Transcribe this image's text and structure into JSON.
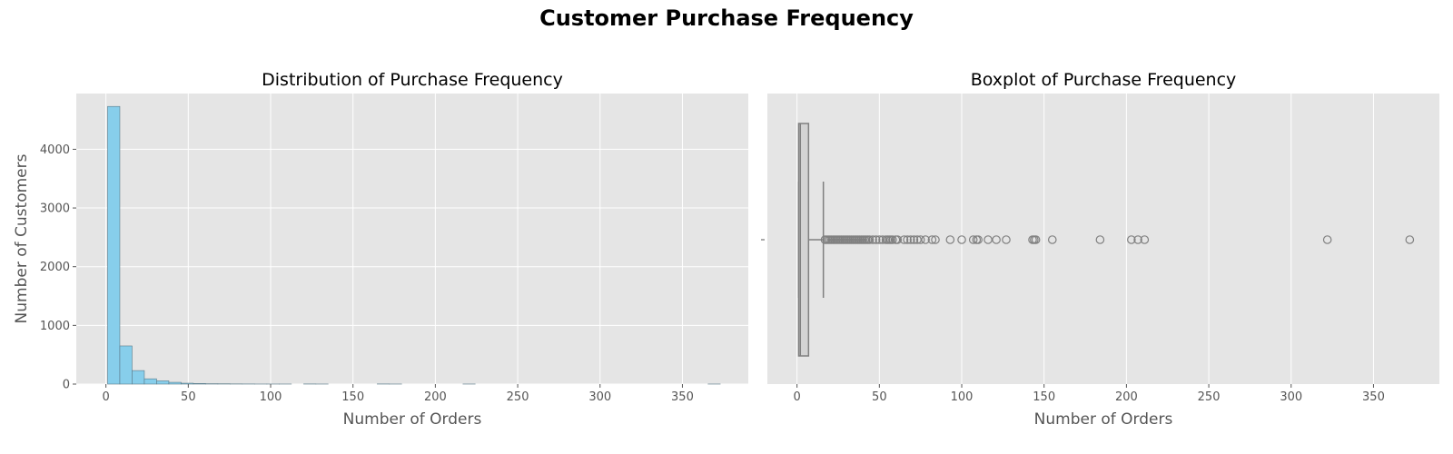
{
  "figure": {
    "title": "Customer Purchase Frequency"
  },
  "chart_data": [
    {
      "type": "histogram",
      "title": "Distribution of Purchase Frequency",
      "xlabel": "Number of Orders",
      "ylabel": "Number of Customers",
      "xlim": [
        -18,
        390
      ],
      "ylim": [
        0,
        4950
      ],
      "xticks": [
        0,
        50,
        100,
        150,
        200,
        250,
        300,
        350
      ],
      "yticks": [
        0,
        1000,
        2000,
        3000,
        4000
      ],
      "grid": true,
      "bin_width": 7.44,
      "bin_start": 1,
      "values": [
        4730,
        650,
        230,
        90,
        55,
        30,
        15,
        10,
        6,
        5,
        3,
        2,
        1,
        1,
        1,
        0,
        2,
        1,
        0,
        0,
        0,
        0,
        2,
        1,
        0,
        0,
        0,
        0,
        0,
        1,
        0,
        0,
        0,
        0,
        0,
        0,
        0,
        0,
        0,
        0,
        0,
        0,
        0,
        0,
        0,
        0,
        0,
        0,
        0,
        1
      ],
      "color": "#87ceeb"
    },
    {
      "type": "boxplot",
      "title": "Boxplot of Purchase Frequency",
      "xlabel": "Number of Orders",
      "xlim": [
        -18,
        390
      ],
      "xticks": [
        0,
        50,
        100,
        150,
        200,
        250,
        300,
        350
      ],
      "grid": true,
      "box": {
        "q1": 1,
        "median": 2,
        "q3": 7,
        "whisker_low": 1,
        "whisker_high": 16
      },
      "outliers": [
        17,
        18,
        19,
        20,
        21,
        22,
        23,
        24,
        25,
        26,
        27,
        28,
        29,
        30,
        31,
        32,
        33,
        34,
        35,
        36,
        37,
        38,
        39,
        40,
        41,
        42,
        43,
        44,
        46,
        48,
        50,
        52,
        54,
        55,
        56,
        57,
        58,
        60,
        61,
        65,
        67,
        69,
        71,
        73,
        75,
        78,
        82,
        84,
        93,
        100,
        107,
        109,
        110,
        116,
        121,
        127,
        143,
        144,
        145,
        155,
        184,
        203,
        207,
        211,
        322,
        372
      ],
      "color": "#d3d3d3"
    }
  ]
}
